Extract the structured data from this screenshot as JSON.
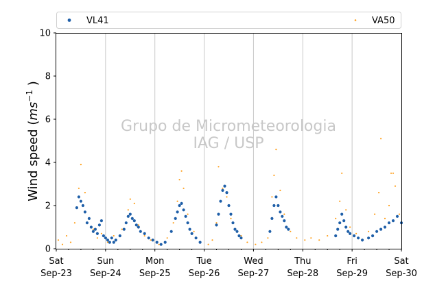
{
  "chart_data": {
    "type": "scatter",
    "title": "",
    "ylabel": "Wind speed ($ms^{-1}$ )",
    "ylabel_parts": {
      "main": "Wind speed (",
      "var": "ms",
      "sup": "−1",
      "close": " )"
    },
    "xlabel": "",
    "ylim": [
      0,
      10
    ],
    "xlim": [
      "2017-09-23",
      "2017-09-30"
    ],
    "yticks": [
      0,
      2,
      4,
      6,
      8,
      10
    ],
    "xticks": [
      {
        "date": "2017-09-23",
        "line1": "Sat",
        "line2": "Sep-23"
      },
      {
        "date": "2017-09-24",
        "line1": "Sun",
        "line2": "Sep-24"
      },
      {
        "date": "2017-09-25",
        "line1": "Mon",
        "line2": "Sep-25"
      },
      {
        "date": "2017-09-26",
        "line1": "Tue",
        "line2": "Sep-26"
      },
      {
        "date": "2017-09-27",
        "line1": "Wed",
        "line2": "Sep-27"
      },
      {
        "date": "2017-09-28",
        "line1": "Thu",
        "line2": "Sep-28"
      },
      {
        "date": "2017-09-29",
        "line1": "Fri",
        "line2": "Sep-29"
      },
      {
        "date": "2017-09-30",
        "line1": "Sat",
        "line2": "Sep-30"
      }
    ],
    "grid": "vertical-major",
    "legend_position": "top",
    "watermark": [
      "Grupo de Micrometeorologia",
      "IAG / USP"
    ],
    "series": [
      {
        "name": "VL41",
        "color": "#1f5fa8",
        "marker": "dot",
        "points": [
          [
            "2017-09-23 10:00",
            1.9
          ],
          [
            "2017-09-23 11:00",
            2.4
          ],
          [
            "2017-09-23 12:00",
            2.2
          ],
          [
            "2017-09-23 13:00",
            2.0
          ],
          [
            "2017-09-23 14:00",
            1.7
          ],
          [
            "2017-09-23 15:00",
            1.2
          ],
          [
            "2017-09-23 16:00",
            1.4
          ],
          [
            "2017-09-23 17:00",
            1.0
          ],
          [
            "2017-09-23 18:00",
            0.8
          ],
          [
            "2017-09-23 19:00",
            0.9
          ],
          [
            "2017-09-23 20:00",
            0.7
          ],
          [
            "2017-09-23 21:00",
            1.1
          ],
          [
            "2017-09-23 22:00",
            1.3
          ],
          [
            "2017-09-23 23:00",
            0.6
          ],
          [
            "2017-09-24 00:00",
            0.5
          ],
          [
            "2017-09-24 01:00",
            0.4
          ],
          [
            "2017-09-24 02:00",
            0.3
          ],
          [
            "2017-09-24 03:00",
            0.5
          ],
          [
            "2017-09-24 04:00",
            0.3
          ],
          [
            "2017-09-24 05:00",
            0.4
          ],
          [
            "2017-09-24 07:00",
            0.6
          ],
          [
            "2017-09-24 09:00",
            0.9
          ],
          [
            "2017-09-24 10:00",
            1.2
          ],
          [
            "2017-09-24 11:00",
            1.5
          ],
          [
            "2017-09-24 12:00",
            1.6
          ],
          [
            "2017-09-24 13:00",
            1.4
          ],
          [
            "2017-09-24 14:00",
            1.3
          ],
          [
            "2017-09-24 15:00",
            1.1
          ],
          [
            "2017-09-24 16:00",
            1.0
          ],
          [
            "2017-09-24 17:00",
            0.8
          ],
          [
            "2017-09-24 19:00",
            0.7
          ],
          [
            "2017-09-24 21:00",
            0.5
          ],
          [
            "2017-09-24 23:00",
            0.4
          ],
          [
            "2017-09-25 01:00",
            0.3
          ],
          [
            "2017-09-25 03:00",
            0.2
          ],
          [
            "2017-09-25 05:00",
            0.3
          ],
          [
            "2017-09-25 08:00",
            0.8
          ],
          [
            "2017-09-25 10:00",
            1.4
          ],
          [
            "2017-09-25 11:00",
            1.7
          ],
          [
            "2017-09-25 12:00",
            2.0
          ],
          [
            "2017-09-25 13:00",
            2.1
          ],
          [
            "2017-09-25 14:00",
            1.8
          ],
          [
            "2017-09-25 15:00",
            1.5
          ],
          [
            "2017-09-25 16:00",
            1.2
          ],
          [
            "2017-09-25 17:00",
            0.9
          ],
          [
            "2017-09-25 18:00",
            0.7
          ],
          [
            "2017-09-25 20:00",
            0.5
          ],
          [
            "2017-09-25 22:00",
            0.3
          ],
          [
            "2017-09-26 06:00",
            1.1
          ],
          [
            "2017-09-26 07:00",
            1.6
          ],
          [
            "2017-09-26 08:00",
            2.2
          ],
          [
            "2017-09-26 09:00",
            2.7
          ],
          [
            "2017-09-26 10:00",
            2.9
          ],
          [
            "2017-09-26 11:00",
            2.6
          ],
          [
            "2017-09-26 12:00",
            2.0
          ],
          [
            "2017-09-26 13:00",
            1.6
          ],
          [
            "2017-09-26 14:00",
            1.2
          ],
          [
            "2017-09-26 15:00",
            0.9
          ],
          [
            "2017-09-26 16:00",
            0.8
          ],
          [
            "2017-09-26 17:00",
            0.6
          ],
          [
            "2017-09-26 18:00",
            0.5
          ],
          [
            "2017-09-27 08:00",
            0.8
          ],
          [
            "2017-09-27 09:00",
            1.4
          ],
          [
            "2017-09-27 10:00",
            2.0
          ],
          [
            "2017-09-27 11:00",
            2.4
          ],
          [
            "2017-09-27 12:00",
            2.0
          ],
          [
            "2017-09-27 13:00",
            1.7
          ],
          [
            "2017-09-27 14:00",
            1.5
          ],
          [
            "2017-09-27 15:00",
            1.3
          ],
          [
            "2017-09-27 16:00",
            1.0
          ],
          [
            "2017-09-27 17:00",
            0.9
          ],
          [
            "2017-09-28 16:00",
            0.6
          ],
          [
            "2017-09-28 17:00",
            0.9
          ],
          [
            "2017-09-28 18:00",
            1.2
          ],
          [
            "2017-09-28 19:00",
            1.6
          ],
          [
            "2017-09-28 20:00",
            1.3
          ],
          [
            "2017-09-28 21:00",
            1.0
          ],
          [
            "2017-09-28 22:00",
            0.8
          ],
          [
            "2017-09-28 23:00",
            0.7
          ],
          [
            "2017-09-29 01:00",
            0.6
          ],
          [
            "2017-09-29 03:00",
            0.5
          ],
          [
            "2017-09-29 05:00",
            0.4
          ],
          [
            "2017-09-29 08:00",
            0.5
          ],
          [
            "2017-09-29 10:00",
            0.6
          ],
          [
            "2017-09-29 12:00",
            0.8
          ],
          [
            "2017-09-29 14:00",
            0.9
          ],
          [
            "2017-09-29 16:00",
            1.0
          ],
          [
            "2017-09-29 18:00",
            1.2
          ],
          [
            "2017-09-29 20:00",
            1.3
          ],
          [
            "2017-09-29 22:00",
            1.5
          ],
          [
            "2017-09-30 00:00",
            1.2
          ]
        ]
      },
      {
        "name": "VA50",
        "color": "#ff9f1a",
        "marker": "small-dot",
        "points": [
          [
            "2017-09-23 01:00",
            0.4
          ],
          [
            "2017-09-23 03:00",
            0.2
          ],
          [
            "2017-09-23 05:00",
            0.6
          ],
          [
            "2017-09-23 07:00",
            0.3
          ],
          [
            "2017-09-23 09:00",
            1.2
          ],
          [
            "2017-09-23 11:00",
            2.8
          ],
          [
            "2017-09-23 12:00",
            3.9
          ],
          [
            "2017-09-23 14:00",
            2.6
          ],
          [
            "2017-09-23 16:00",
            1.4
          ],
          [
            "2017-09-23 18:00",
            0.9
          ],
          [
            "2017-09-23 20:00",
            0.5
          ],
          [
            "2017-09-23 22:00",
            0.7
          ],
          [
            "2017-09-24 01:00",
            0.3
          ],
          [
            "2017-09-24 04:00",
            0.6
          ],
          [
            "2017-09-24 08:00",
            0.9
          ],
          [
            "2017-09-24 11:00",
            1.8
          ],
          [
            "2017-09-24 12:00",
            2.3
          ],
          [
            "2017-09-24 14:00",
            2.1
          ],
          [
            "2017-09-24 16:00",
            1.1
          ],
          [
            "2017-09-24 19:00",
            0.6
          ],
          [
            "2017-09-24 22:00",
            0.4
          ],
          [
            "2017-09-25 02:00",
            0.2
          ],
          [
            "2017-09-25 06:00",
            0.5
          ],
          [
            "2017-09-25 09:00",
            1.2
          ],
          [
            "2017-09-25 11:00",
            2.2
          ],
          [
            "2017-09-25 12:00",
            3.2
          ],
          [
            "2017-09-25 13:00",
            3.6
          ],
          [
            "2017-09-25 14:00",
            2.8
          ],
          [
            "2017-09-25 16:00",
            1.6
          ],
          [
            "2017-09-25 19:00",
            0.8
          ],
          [
            "2017-09-25 22:00",
            0.3
          ],
          [
            "2017-09-26 02:00",
            0.2
          ],
          [
            "2017-09-26 04:00",
            0.4
          ],
          [
            "2017-09-26 06:00",
            1.2
          ],
          [
            "2017-09-26 07:00",
            3.8
          ],
          [
            "2017-09-26 09:00",
            2.8
          ],
          [
            "2017-09-26 11:00",
            2.4
          ],
          [
            "2017-09-26 13:00",
            1.4
          ],
          [
            "2017-09-26 15:00",
            0.9
          ],
          [
            "2017-09-26 18:00",
            0.6
          ],
          [
            "2017-09-26 21:00",
            0.3
          ],
          [
            "2017-09-27 01:00",
            0.2
          ],
          [
            "2017-09-27 04:00",
            0.3
          ],
          [
            "2017-09-27 07:00",
            0.5
          ],
          [
            "2017-09-27 09:00",
            2.4
          ],
          [
            "2017-09-27 10:00",
            3.4
          ],
          [
            "2017-09-27 11:00",
            4.6
          ],
          [
            "2017-09-27 13:00",
            2.7
          ],
          [
            "2017-09-27 15:00",
            1.6
          ],
          [
            "2017-09-27 18:00",
            0.8
          ],
          [
            "2017-09-27 21:00",
            0.5
          ],
          [
            "2017-09-28 01:00",
            0.4
          ],
          [
            "2017-09-28 04:00",
            0.5
          ],
          [
            "2017-09-28 08:00",
            0.4
          ],
          [
            "2017-09-28 12:00",
            0.6
          ],
          [
            "2017-09-28 16:00",
            1.4
          ],
          [
            "2017-09-28 18:00",
            2.2
          ],
          [
            "2017-09-28 19:00",
            3.5
          ],
          [
            "2017-09-28 21:00",
            1.8
          ],
          [
            "2017-09-28 23:00",
            1.0
          ],
          [
            "2017-09-29 02:00",
            0.7
          ],
          [
            "2017-09-29 05:00",
            0.4
          ],
          [
            "2017-09-29 08:00",
            0.8
          ],
          [
            "2017-09-29 11:00",
            1.6
          ],
          [
            "2017-09-29 13:00",
            2.6
          ],
          [
            "2017-09-29 14:00",
            5.1
          ],
          [
            "2017-09-29 16:00",
            1.4
          ],
          [
            "2017-09-29 18:00",
            2.0
          ],
          [
            "2017-09-29 19:00",
            3.5
          ],
          [
            "2017-09-29 20:00",
            3.5
          ],
          [
            "2017-09-29 21:00",
            2.9
          ],
          [
            "2017-09-29 23:00",
            1.6
          ]
        ]
      }
    ]
  }
}
